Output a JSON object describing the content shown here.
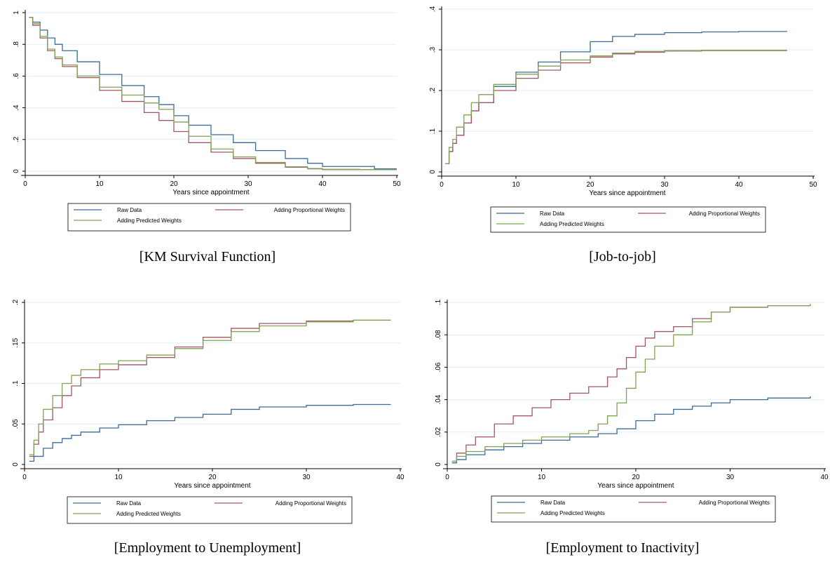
{
  "legend": {
    "raw_label": "Raw Data",
    "prop_label": "Adding Proportional Weights",
    "pred_label": "Adding Predicted Weights"
  },
  "colors": {
    "raw": "#3a6b9a",
    "prop": "#a65563",
    "pred": "#7fa352"
  },
  "chart_data": [
    {
      "type": "line",
      "caption": "[KM Survival Function]",
      "xlabel": "Years since appointment",
      "ylabel": "",
      "xlim": [
        0,
        50
      ],
      "ylim": [
        0,
        1
      ],
      "xticks": [
        0,
        10,
        20,
        30,
        40,
        50
      ],
      "yticks": [
        0,
        0.2,
        0.4,
        0.6,
        0.8,
        1
      ],
      "ytick_labels": [
        "0",
        ".2",
        ".4",
        ".6",
        ".8",
        "1"
      ],
      "grid": true,
      "legend_position": "bottom",
      "step": true,
      "series": [
        {
          "name": "Raw Data",
          "key": "raw",
          "x": [
            0.5,
            1,
            2,
            3,
            4,
            5,
            7,
            10,
            13,
            16,
            18,
            20,
            22,
            25,
            28,
            31,
            35,
            38,
            40,
            45,
            47,
            50
          ],
          "y": [
            0.97,
            0.94,
            0.89,
            0.84,
            0.8,
            0.76,
            0.69,
            0.61,
            0.54,
            0.47,
            0.42,
            0.35,
            0.29,
            0.23,
            0.18,
            0.13,
            0.08,
            0.05,
            0.03,
            0.03,
            0.015,
            0.015
          ]
        },
        {
          "name": "Adding Proportional Weights",
          "key": "prop",
          "x": [
            0.5,
            1,
            2,
            3,
            4,
            5,
            7,
            10,
            13,
            16,
            18,
            20,
            22,
            25,
            28,
            31,
            35,
            38,
            40,
            45,
            50
          ],
          "y": [
            0.97,
            0.92,
            0.84,
            0.76,
            0.71,
            0.66,
            0.59,
            0.51,
            0.44,
            0.37,
            0.32,
            0.25,
            0.18,
            0.12,
            0.08,
            0.05,
            0.025,
            0.015,
            0.01,
            0.01,
            0.01
          ]
        },
        {
          "name": "Adding Predicted Weights",
          "key": "pred",
          "x": [
            0.5,
            1,
            2,
            3,
            4,
            5,
            7,
            10,
            13,
            16,
            18,
            20,
            22,
            25,
            28,
            31,
            35,
            38,
            40,
            45,
            50
          ],
          "y": [
            0.97,
            0.93,
            0.85,
            0.77,
            0.72,
            0.67,
            0.6,
            0.53,
            0.48,
            0.43,
            0.39,
            0.31,
            0.22,
            0.14,
            0.09,
            0.055,
            0.028,
            0.017,
            0.012,
            0.01,
            0.01
          ]
        }
      ]
    },
    {
      "type": "line",
      "caption": "[Job-to-job]",
      "xlabel": "Years since appointment",
      "ylabel": "",
      "xlim": [
        0,
        50
      ],
      "ylim": [
        0,
        0.4
      ],
      "xticks": [
        0,
        10,
        20,
        30,
        40,
        50
      ],
      "yticks": [
        0,
        0.1,
        0.2,
        0.3,
        0.4
      ],
      "ytick_labels": [
        "0",
        ".1",
        ".2",
        ".3",
        ".4"
      ],
      "grid": true,
      "legend_position": "bottom",
      "step": true,
      "series": [
        {
          "name": "Raw Data",
          "key": "raw",
          "x": [
            0.5,
            1,
            1.5,
            2,
            3,
            4,
            5,
            7,
            10,
            13,
            16,
            20,
            23,
            26,
            30,
            35,
            40,
            46.5
          ],
          "y": [
            0.02,
            0.05,
            0.07,
            0.09,
            0.12,
            0.15,
            0.17,
            0.21,
            0.245,
            0.27,
            0.295,
            0.32,
            0.333,
            0.338,
            0.342,
            0.344,
            0.345,
            0.345
          ]
        },
        {
          "name": "Adding Proportional Weights",
          "key": "prop",
          "x": [
            0.5,
            1,
            1.5,
            2,
            3,
            4,
            5,
            7,
            10,
            13,
            16,
            20,
            23,
            26,
            30,
            35,
            40,
            46.5
          ],
          "y": [
            0.02,
            0.05,
            0.07,
            0.09,
            0.12,
            0.15,
            0.17,
            0.2,
            0.23,
            0.25,
            0.268,
            0.282,
            0.29,
            0.294,
            0.297,
            0.298,
            0.298,
            0.298
          ]
        },
        {
          "name": "Adding Predicted Weights",
          "key": "pred",
          "x": [
            0.5,
            1,
            1.5,
            2,
            3,
            4,
            5,
            7,
            10,
            13,
            16,
            20,
            23,
            26,
            30,
            35,
            40,
            46.5
          ],
          "y": [
            0.02,
            0.06,
            0.08,
            0.11,
            0.14,
            0.17,
            0.19,
            0.215,
            0.24,
            0.26,
            0.275,
            0.285,
            0.292,
            0.296,
            0.298,
            0.299,
            0.299,
            0.299
          ]
        }
      ]
    },
    {
      "type": "line",
      "caption": "[Employment to Unemployment]",
      "xlabel": "Years since appointment",
      "ylabel": "",
      "xlim": [
        0,
        40
      ],
      "ylim": [
        0,
        0.2
      ],
      "xticks": [
        0,
        10,
        20,
        30,
        40
      ],
      "yticks": [
        0,
        0.05,
        0.1,
        0.15,
        0.2
      ],
      "ytick_labels": [
        "0",
        ".05",
        ".1",
        ".15",
        ".2"
      ],
      "grid": true,
      "legend_position": "bottom",
      "step": true,
      "series": [
        {
          "name": "Raw Data",
          "key": "raw",
          "x": [
            0.5,
            1,
            2,
            3,
            4,
            5,
            6,
            8,
            10,
            13,
            16,
            19,
            22,
            25,
            30,
            35,
            39
          ],
          "y": [
            0.004,
            0.01,
            0.02,
            0.027,
            0.032,
            0.036,
            0.04,
            0.045,
            0.049,
            0.054,
            0.058,
            0.062,
            0.068,
            0.071,
            0.073,
            0.074,
            0.074
          ]
        },
        {
          "name": "Adding Proportional Weights",
          "key": "prop",
          "x": [
            0.5,
            1,
            1.5,
            2,
            3,
            4,
            5,
            6,
            8,
            10,
            13,
            16,
            19,
            22,
            25,
            30,
            35,
            39
          ],
          "y": [
            0.01,
            0.025,
            0.04,
            0.055,
            0.07,
            0.085,
            0.097,
            0.107,
            0.117,
            0.123,
            0.132,
            0.145,
            0.157,
            0.168,
            0.174,
            0.177,
            0.178,
            0.178
          ]
        },
        {
          "name": "Adding Predicted Weights",
          "key": "pred",
          "x": [
            0.5,
            1,
            1.5,
            2,
            3,
            4,
            5,
            6,
            8,
            10,
            13,
            16,
            19,
            22,
            25,
            30,
            35,
            39
          ],
          "y": [
            0.012,
            0.03,
            0.05,
            0.068,
            0.085,
            0.1,
            0.11,
            0.117,
            0.124,
            0.128,
            0.135,
            0.143,
            0.153,
            0.164,
            0.171,
            0.176,
            0.178,
            0.178
          ]
        }
      ]
    },
    {
      "type": "line",
      "caption": "[Employment to Inactivity]",
      "xlabel": "Years since appointment",
      "ylabel": "",
      "xlim": [
        0,
        40
      ],
      "ylim": [
        0,
        0.1
      ],
      "xticks": [
        0,
        10,
        20,
        30,
        40
      ],
      "yticks": [
        0,
        0.02,
        0.04,
        0.06,
        0.08,
        0.1
      ],
      "ytick_labels": [
        "0",
        ".02",
        ".04",
        ".06",
        ".08",
        ".1"
      ],
      "grid": true,
      "legend_position": "bottom",
      "step": true,
      "series": [
        {
          "name": "Raw Data",
          "key": "raw",
          "x": [
            0.5,
            1,
            2,
            4,
            6,
            8,
            10,
            13,
            16,
            18,
            20,
            22,
            24,
            26,
            28,
            30,
            34,
            38.5
          ],
          "y": [
            0.001,
            0.003,
            0.006,
            0.009,
            0.011,
            0.013,
            0.015,
            0.017,
            0.019,
            0.022,
            0.027,
            0.031,
            0.034,
            0.036,
            0.038,
            0.04,
            0.041,
            0.042
          ]
        },
        {
          "name": "Adding Proportional Weights",
          "key": "prop",
          "x": [
            0.5,
            1,
            2,
            3,
            5,
            7,
            9,
            11,
            13,
            15,
            17,
            18,
            19,
            20,
            21,
            22,
            24,
            26,
            28,
            30,
            34,
            38.5
          ],
          "y": [
            0.002,
            0.007,
            0.012,
            0.017,
            0.025,
            0.03,
            0.035,
            0.04,
            0.044,
            0.048,
            0.054,
            0.059,
            0.066,
            0.073,
            0.078,
            0.082,
            0.085,
            0.09,
            0.094,
            0.097,
            0.098,
            0.099
          ]
        },
        {
          "name": "Adding Predicted Weights",
          "key": "pred",
          "x": [
            0.5,
            1,
            2,
            4,
            6,
            8,
            10,
            13,
            15,
            16,
            17,
            18,
            19,
            20,
            21,
            22,
            24,
            26,
            28,
            30,
            34,
            38.5
          ],
          "y": [
            0.002,
            0.005,
            0.008,
            0.011,
            0.013,
            0.015,
            0.017,
            0.019,
            0.021,
            0.025,
            0.03,
            0.038,
            0.047,
            0.057,
            0.065,
            0.073,
            0.08,
            0.088,
            0.094,
            0.097,
            0.098,
            0.099
          ]
        }
      ]
    }
  ]
}
